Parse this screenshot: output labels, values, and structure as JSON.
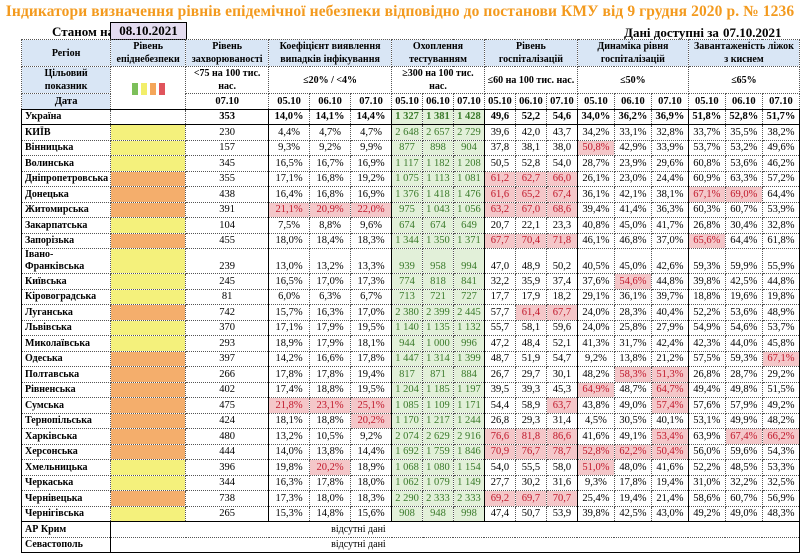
{
  "title": "Індикатори визначення рівнів епідемічної небезпеки відповідно до постанови КМУ від 9 грудня 2020 р. № 1236",
  "as_of_label": "Станом на",
  "as_of_date": "08.10.2021",
  "data_available_label": "Дані доступні за",
  "data_available_date": "07.10.2021",
  "headers": {
    "region": "Регіон",
    "danger_level": "Рівень епіднебезпеки",
    "incidence": "Рівень захворюваності",
    "detection": "Коефіцієнт виявлення випадків інфікування",
    "testing": "Охоплення тестуванням",
    "hosp_level": "Рівень госпіталізацій",
    "hosp_dynamics": "Динаміка рівня госпіталізацій",
    "oxygen_beds": "Завантаженість ліжок з киснем"
  },
  "targets": {
    "label": "Цільовий показник",
    "incidence": "<75 на 100 тис. нас.",
    "detection": "≤20% / <4%",
    "testing": "≥300 на 100 тис. нас.",
    "hosp_level": "≤60 на 100 тис. нас.",
    "hosp_dynamics": "≤50%",
    "oxygen_beds": "≤65%"
  },
  "legend_colors": [
    "#7cbf5a",
    "#f2ee6a",
    "#f4a65a",
    "#e0545c"
  ],
  "date_row": {
    "label": "Дата",
    "incidence": "07.10",
    "dates": [
      "05.10",
      "06.10",
      "07.10"
    ]
  },
  "colors": {
    "title": "#f39a1e",
    "header_bg": "#d9e6f5",
    "level_yellow": "#f4f17c",
    "level_orange": "#f4ae6c",
    "testing_bg": "#e2f0d9",
    "exceed_bg": "#f4c7c9",
    "exceed_text": "#c0182b"
  },
  "rows": [
    {
      "region": "Україна",
      "level": "",
      "inc": "353",
      "det": [
        "14,0%",
        "14,1%",
        "14,4%"
      ],
      "test": [
        "1 327",
        "1 381",
        "1 428"
      ],
      "hosp": [
        "49,6",
        "52,2",
        "54,6"
      ],
      "dyn": [
        "34,0%",
        "36,2%",
        "36,9%"
      ],
      "oxy": [
        "51,8%",
        "52,8%",
        "51,7%"
      ],
      "bad": []
    },
    {
      "region": "КИЇВ",
      "level": "yellow",
      "inc": "230",
      "det": [
        "4,4%",
        "4,7%",
        "4,7%"
      ],
      "test": [
        "2 648",
        "2 657",
        "2 729"
      ],
      "hosp": [
        "39,6",
        "42,0",
        "43,7"
      ],
      "dyn": [
        "34,2%",
        "33,1%",
        "32,8%"
      ],
      "oxy": [
        "33,7%",
        "35,5%",
        "38,2%"
      ],
      "bad": []
    },
    {
      "region": "Вінницька",
      "level": "yellow",
      "inc": "157",
      "det": [
        "9,3%",
        "9,2%",
        "9,9%"
      ],
      "test": [
        "877",
        "898",
        "904"
      ],
      "hosp": [
        "37,8",
        "38,1",
        "38,0"
      ],
      "dyn": [
        "50,8%",
        "42,9%",
        "33,9%"
      ],
      "oxy": [
        "53,7%",
        "53,2%",
        "49,6%"
      ],
      "bad": [
        "dyn0"
      ]
    },
    {
      "region": "Волинська",
      "level": "yellow",
      "inc": "345",
      "det": [
        "16,5%",
        "16,7%",
        "16,9%"
      ],
      "test": [
        "1 117",
        "1 182",
        "1 208"
      ],
      "hosp": [
        "50,5",
        "52,8",
        "54,0"
      ],
      "dyn": [
        "28,7%",
        "23,9%",
        "29,6%"
      ],
      "oxy": [
        "60,8%",
        "53,6%",
        "46,2%"
      ],
      "bad": []
    },
    {
      "region": "Дніпропетровська",
      "level": "orange",
      "inc": "355",
      "det": [
        "17,1%",
        "16,8%",
        "19,2%"
      ],
      "test": [
        "1 075",
        "1 113",
        "1 081"
      ],
      "hosp": [
        "61,2",
        "62,7",
        "66,0"
      ],
      "dyn": [
        "26,1%",
        "23,0%",
        "24,4%"
      ],
      "oxy": [
        "60,9%",
        "63,3%",
        "57,2%"
      ],
      "bad": [
        "hosp0",
        "hosp1",
        "hosp2"
      ]
    },
    {
      "region": "Донецька",
      "level": "orange",
      "inc": "438",
      "det": [
        "16,4%",
        "16,8%",
        "16,9%"
      ],
      "test": [
        "1 376",
        "1 418",
        "1 476"
      ],
      "hosp": [
        "61,6",
        "65,2",
        "67,4"
      ],
      "dyn": [
        "36,1%",
        "42,1%",
        "38,1%"
      ],
      "oxy": [
        "67,1%",
        "69,0%",
        "64,4%"
      ],
      "bad": [
        "hosp0",
        "hosp1",
        "hosp2",
        "oxy0",
        "oxy1"
      ]
    },
    {
      "region": "Житомирська",
      "level": "orange",
      "inc": "391",
      "det": [
        "21,1%",
        "20,9%",
        "22,0%"
      ],
      "test": [
        "975",
        "1 043",
        "1 056"
      ],
      "hosp": [
        "63,2",
        "67,0",
        "68,6"
      ],
      "dyn": [
        "39,4%",
        "41,4%",
        "36,3%"
      ],
      "oxy": [
        "60,3%",
        "60,7%",
        "53,9%"
      ],
      "bad": [
        "det0",
        "det1",
        "det2",
        "hosp0",
        "hosp1",
        "hosp2"
      ]
    },
    {
      "region": "Закарпатська",
      "level": "yellow",
      "inc": "104",
      "det": [
        "7,5%",
        "8,8%",
        "9,6%"
      ],
      "test": [
        "674",
        "674",
        "649"
      ],
      "hosp": [
        "20,7",
        "22,1",
        "23,3"
      ],
      "dyn": [
        "40,8%",
        "45,0%",
        "41,7%"
      ],
      "oxy": [
        "26,8%",
        "30,4%",
        "32,8%"
      ],
      "bad": []
    },
    {
      "region": "Запорізька",
      "level": "orange",
      "inc": "455",
      "det": [
        "18,0%",
        "18,4%",
        "18,3%"
      ],
      "test": [
        "1 344",
        "1 350",
        "1 371"
      ],
      "hosp": [
        "67,7",
        "70,4",
        "71,8"
      ],
      "dyn": [
        "46,1%",
        "46,8%",
        "37,0%"
      ],
      "oxy": [
        "65,6%",
        "64,4%",
        "61,8%"
      ],
      "bad": [
        "hosp0",
        "hosp1",
        "hosp2",
        "oxy0"
      ]
    },
    {
      "region": "Івано-Франківська",
      "level": "yellow",
      "inc": "239",
      "det": [
        "13,0%",
        "13,2%",
        "13,3%"
      ],
      "test": [
        "939",
        "958",
        "994"
      ],
      "hosp": [
        "47,0",
        "48,9",
        "50,2"
      ],
      "dyn": [
        "40,5%",
        "45,0%",
        "42,6%"
      ],
      "oxy": [
        "59,3%",
        "59,9%",
        "55,9%"
      ],
      "bad": [],
      "tall": true
    },
    {
      "region": "Київська",
      "level": "yellow",
      "inc": "245",
      "det": [
        "16,5%",
        "17,0%",
        "17,3%"
      ],
      "test": [
        "774",
        "818",
        "841"
      ],
      "hosp": [
        "32,2",
        "35,9",
        "37,4"
      ],
      "dyn": [
        "37,6%",
        "54,6%",
        "44,8%"
      ],
      "oxy": [
        "39,8%",
        "42,5%",
        "44,8%"
      ],
      "bad": [
        "dyn1"
      ]
    },
    {
      "region": "Кіровоградська",
      "level": "yellow",
      "inc": "81",
      "det": [
        "6,0%",
        "6,3%",
        "6,7%"
      ],
      "test": [
        "713",
        "721",
        "727"
      ],
      "hosp": [
        "17,7",
        "17,9",
        "18,2"
      ],
      "dyn": [
        "29,1%",
        "36,1%",
        "39,7%"
      ],
      "oxy": [
        "18,8%",
        "19,6%",
        "19,8%"
      ],
      "bad": []
    },
    {
      "region": "Луганська",
      "level": "orange",
      "inc": "742",
      "det": [
        "15,7%",
        "16,3%",
        "17,0%"
      ],
      "test": [
        "2 380",
        "2 399",
        "2 445"
      ],
      "hosp": [
        "57,7",
        "61,4",
        "67,7"
      ],
      "dyn": [
        "24,0%",
        "28,3%",
        "40,4%"
      ],
      "oxy": [
        "52,2%",
        "53,6%",
        "48,9%"
      ],
      "bad": [
        "hosp1",
        "hosp2"
      ]
    },
    {
      "region": "Львівська",
      "level": "yellow",
      "inc": "370",
      "det": [
        "17,1%",
        "17,9%",
        "19,5%"
      ],
      "test": [
        "1 140",
        "1 135",
        "1 132"
      ],
      "hosp": [
        "55,7",
        "58,1",
        "59,6"
      ],
      "dyn": [
        "24,0%",
        "25,8%",
        "27,9%"
      ],
      "oxy": [
        "54,9%",
        "54,6%",
        "53,7%"
      ],
      "bad": []
    },
    {
      "region": "Миколаївська",
      "level": "yellow",
      "inc": "293",
      "det": [
        "18,9%",
        "17,9%",
        "18,1%"
      ],
      "test": [
        "944",
        "1 000",
        "996"
      ],
      "hosp": [
        "47,2",
        "48,4",
        "52,1"
      ],
      "dyn": [
        "41,3%",
        "31,7%",
        "42,4%"
      ],
      "oxy": [
        "42,3%",
        "44,0%",
        "45,8%"
      ],
      "bad": []
    },
    {
      "region": "Одеська",
      "level": "orange",
      "inc": "397",
      "det": [
        "14,2%",
        "16,6%",
        "17,8%"
      ],
      "test": [
        "1 447",
        "1 314",
        "1 399"
      ],
      "hosp": [
        "48,7",
        "51,9",
        "54,7"
      ],
      "dyn": [
        "9,2%",
        "13,8%",
        "21,2%"
      ],
      "oxy": [
        "57,5%",
        "59,3%",
        "67,1%"
      ],
      "bad": [
        "oxy2"
      ]
    },
    {
      "region": "Полтавська",
      "level": "orange",
      "inc": "266",
      "det": [
        "17,8%",
        "17,8%",
        "19,4%"
      ],
      "test": [
        "817",
        "871",
        "884"
      ],
      "hosp": [
        "26,7",
        "29,7",
        "30,1"
      ],
      "dyn": [
        "48,2%",
        "58,3%",
        "51,3%"
      ],
      "oxy": [
        "26,8%",
        "28,7%",
        "29,2%"
      ],
      "bad": [
        "dyn1",
        "dyn2"
      ]
    },
    {
      "region": "Рівненська",
      "level": "orange",
      "inc": "402",
      "det": [
        "17,4%",
        "18,8%",
        "19,5%"
      ],
      "test": [
        "1 204",
        "1 185",
        "1 197"
      ],
      "hosp": [
        "39,5",
        "39,3",
        "45,3"
      ],
      "dyn": [
        "64,9%",
        "48,7%",
        "64,7%"
      ],
      "oxy": [
        "49,4%",
        "49,8%",
        "51,5%"
      ],
      "bad": [
        "dyn0",
        "dyn2"
      ]
    },
    {
      "region": "Сумська",
      "level": "orange",
      "inc": "475",
      "det": [
        "21,8%",
        "23,1%",
        "25,1%"
      ],
      "test": [
        "1 085",
        "1 109",
        "1 171"
      ],
      "hosp": [
        "54,4",
        "58,9",
        "63,7"
      ],
      "dyn": [
        "43,8%",
        "49,0%",
        "57,4%"
      ],
      "oxy": [
        "57,6%",
        "57,9%",
        "49,2%"
      ],
      "bad": [
        "det0",
        "det1",
        "det2",
        "hosp2",
        "dyn2"
      ]
    },
    {
      "region": "Тернопільська",
      "level": "orange",
      "inc": "424",
      "det": [
        "18,1%",
        "18,8%",
        "20,2%"
      ],
      "test": [
        "1 170",
        "1 217",
        "1 244"
      ],
      "hosp": [
        "26,8",
        "29,3",
        "31,4"
      ],
      "dyn": [
        "4,5%",
        "30,5%",
        "40,1%"
      ],
      "oxy": [
        "53,1%",
        "49,9%",
        "48,2%"
      ],
      "bad": [
        "det2"
      ]
    },
    {
      "region": "Харківська",
      "level": "orange",
      "inc": "480",
      "det": [
        "13,2%",
        "10,5%",
        "9,2%"
      ],
      "test": [
        "2 074",
        "2 629",
        "2 916"
      ],
      "hosp": [
        "76,6",
        "81,8",
        "86,6"
      ],
      "dyn": [
        "41,6%",
        "49,1%",
        "53,4%"
      ],
      "oxy": [
        "63,9%",
        "67,4%",
        "66,2%"
      ],
      "bad": [
        "hosp0",
        "hosp1",
        "hosp2",
        "dyn2",
        "oxy1",
        "oxy2"
      ]
    },
    {
      "region": "Херсонська",
      "level": "orange",
      "inc": "444",
      "det": [
        "14,0%",
        "13,8%",
        "14,4%"
      ],
      "test": [
        "1 692",
        "1 759",
        "1 846"
      ],
      "hosp": [
        "70,9",
        "76,7",
        "78,7"
      ],
      "dyn": [
        "52,8%",
        "62,2%",
        "50,4%"
      ],
      "oxy": [
        "56,0%",
        "59,6%",
        "54,3%"
      ],
      "bad": [
        "hosp0",
        "hosp1",
        "hosp2",
        "dyn0",
        "dyn1",
        "dyn2"
      ]
    },
    {
      "region": "Хмельницька",
      "level": "yellow",
      "inc": "396",
      "det": [
        "19,8%",
        "20,2%",
        "18,9%"
      ],
      "test": [
        "1 068",
        "1 080",
        "1 154"
      ],
      "hosp": [
        "54,0",
        "55,5",
        "58,0"
      ],
      "dyn": [
        "51,0%",
        "48,0%",
        "41,6%"
      ],
      "oxy": [
        "52,2%",
        "48,5%",
        "53,3%"
      ],
      "bad": [
        "det1",
        "dyn0"
      ]
    },
    {
      "region": "Черкаська",
      "level": "yellow",
      "inc": "344",
      "det": [
        "16,3%",
        "17,8%",
        "18,0%"
      ],
      "test": [
        "1 062",
        "1 079",
        "1 149"
      ],
      "hosp": [
        "27,7",
        "30,2",
        "31,6"
      ],
      "dyn": [
        "9,3%",
        "17,8%",
        "19,4%"
      ],
      "oxy": [
        "31,0%",
        "32,2%",
        "32,5%"
      ],
      "bad": []
    },
    {
      "region": "Чернівецька",
      "level": "orange",
      "inc": "738",
      "det": [
        "17,3%",
        "18,0%",
        "18,3%"
      ],
      "test": [
        "2 290",
        "2 333",
        "2 333"
      ],
      "hosp": [
        "69,2",
        "69,7",
        "70,7"
      ],
      "dyn": [
        "25,4%",
        "19,4%",
        "21,4%"
      ],
      "oxy": [
        "58,6%",
        "60,7%",
        "56,9%"
      ],
      "bad": [
        "hosp0",
        "hosp1",
        "hosp2"
      ]
    },
    {
      "region": "Чернігівська",
      "level": "yellow",
      "inc": "265",
      "det": [
        "15,3%",
        "14,8%",
        "15,6%"
      ],
      "test": [
        "908",
        "948",
        "998"
      ],
      "hosp": [
        "47,4",
        "50,7",
        "53,9"
      ],
      "dyn": [
        "39,8%",
        "42,5%",
        "43,0%"
      ],
      "oxy": [
        "49,2%",
        "49,0%",
        "48,3%"
      ],
      "bad": []
    }
  ],
  "missing_rows": [
    {
      "region": "АР Крим",
      "text": "відсутні дані"
    },
    {
      "region": "Севастополь",
      "text": "відсутні дані"
    }
  ]
}
